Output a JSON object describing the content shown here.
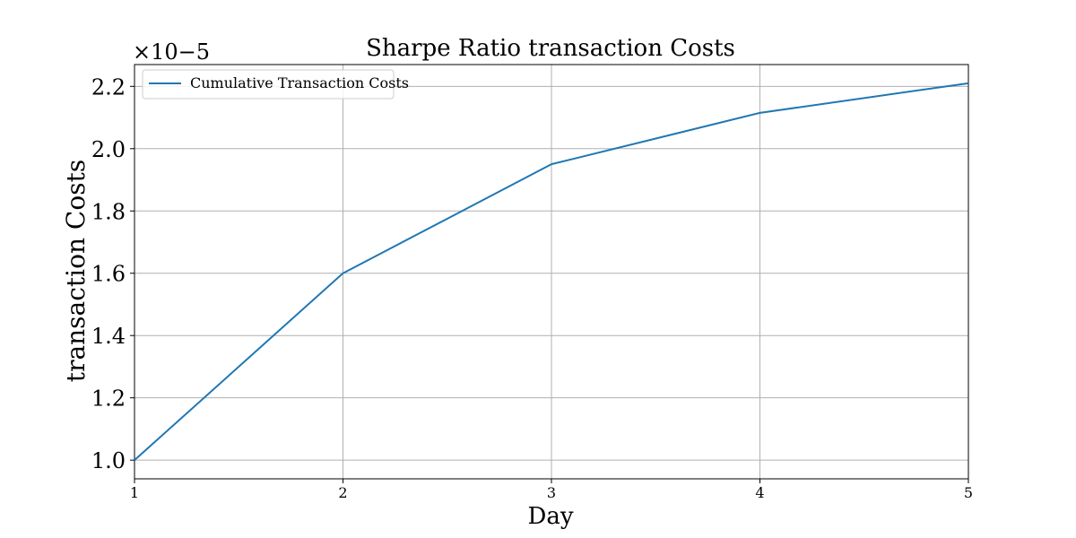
{
  "chart_data": {
    "type": "line",
    "title": "Sharpe Ratio transaction Costs",
    "xlabel": "Day",
    "ylabel": "transaction Costs",
    "y_scale_label": "×10−5",
    "xlim": [
      1,
      5
    ],
    "ylim": [
      0.94,
      2.27
    ],
    "x_ticks": [
      1,
      2,
      3,
      4,
      5
    ],
    "y_ticks": [
      1.0,
      1.2,
      1.4,
      1.6,
      1.8,
      2.0,
      2.2
    ],
    "grid": true,
    "legend_position": "upper-left",
    "series": [
      {
        "name": "Cumulative Transaction Costs",
        "color": "#1f77b4",
        "x": [
          1,
          2,
          3,
          4,
          5
        ],
        "y": [
          1.0,
          1.6,
          1.95,
          2.115,
          2.21
        ]
      }
    ]
  }
}
